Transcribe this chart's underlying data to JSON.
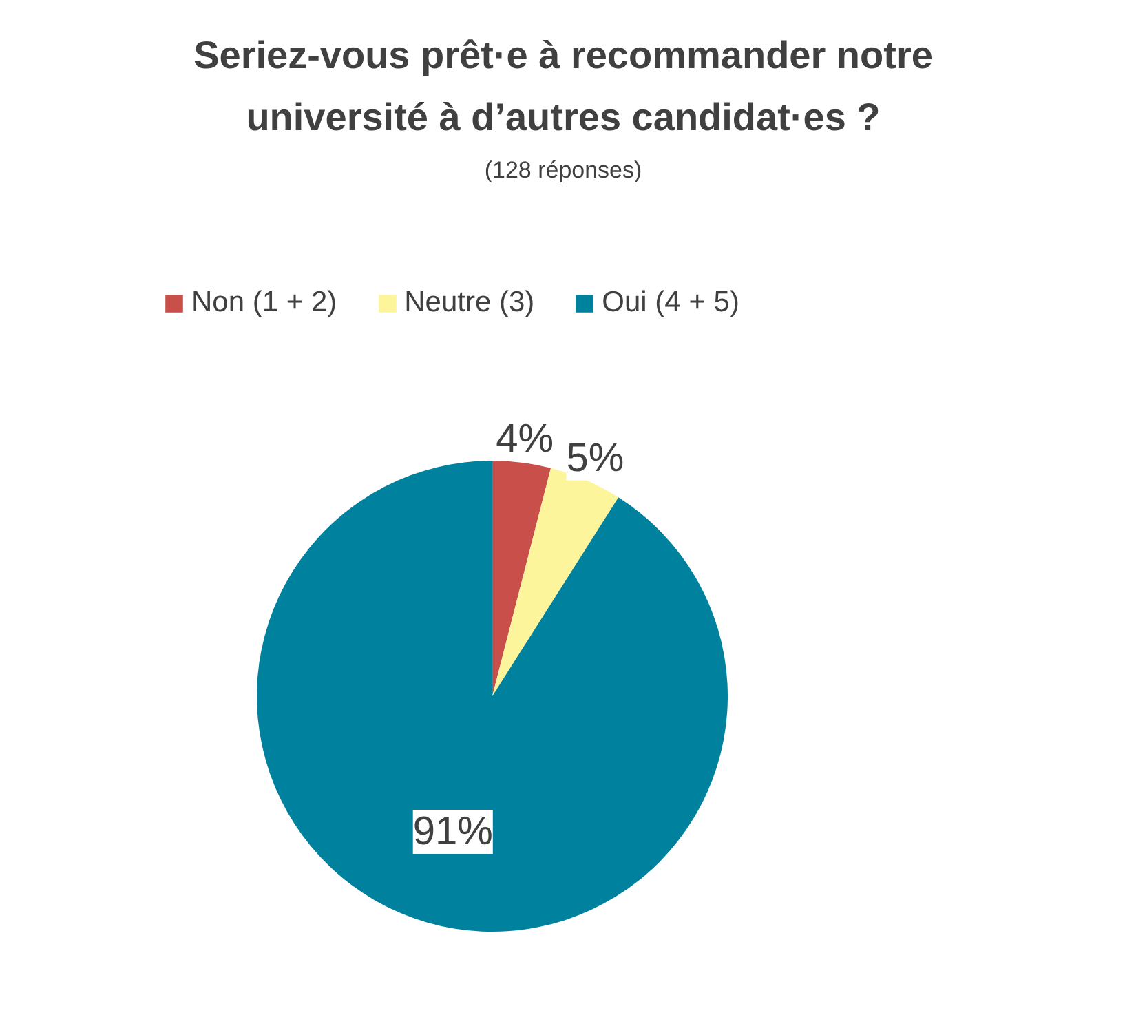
{
  "chart_data": {
    "type": "pie",
    "title": "Seriez-vous prêt·e à recommander notre université à d’autres candidat·es ?",
    "subtitle": "(128 réponses)",
    "categories": [
      "Non (1 + 2)",
      "Neutre (3)",
      "Oui (4 + 5)"
    ],
    "values": [
      4,
      5,
      91
    ],
    "colors": [
      "#c9504a",
      "#fdf59c",
      "#00829f"
    ],
    "value_labels": [
      "4%",
      "5%",
      "91%"
    ],
    "legend": "top"
  }
}
